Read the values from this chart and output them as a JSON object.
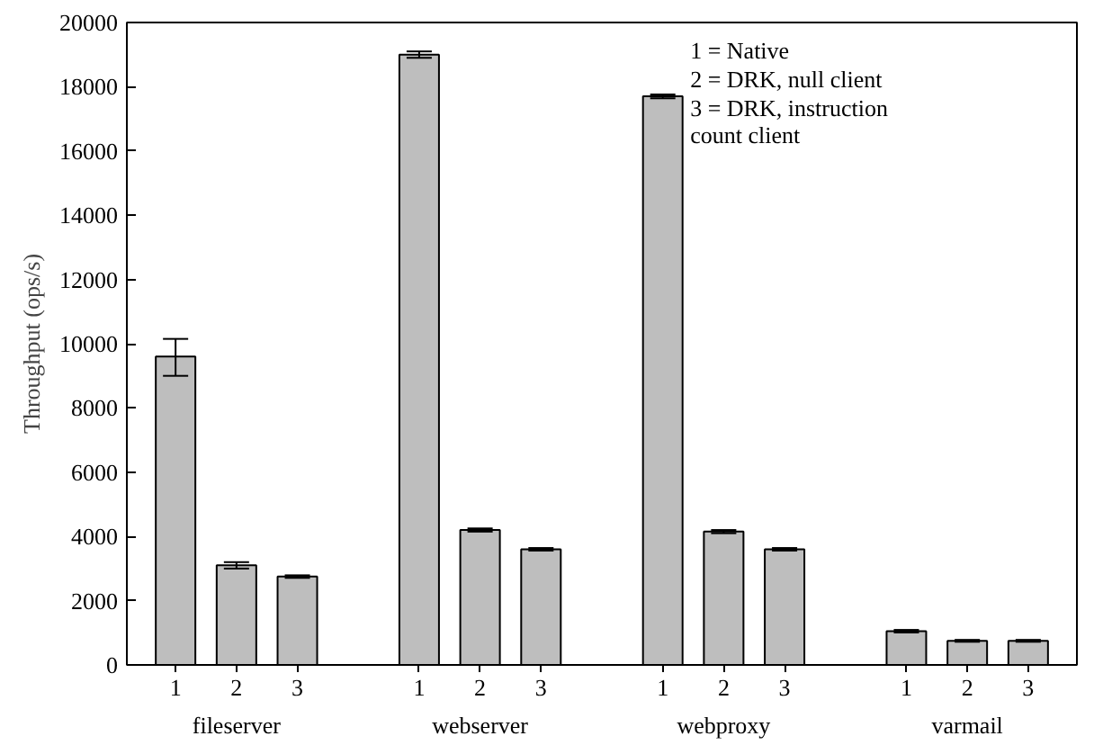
{
  "chart_data": {
    "type": "bar",
    "ylabel": "Throughput (ops/s)",
    "categories": [
      "1",
      "2",
      "3",
      "1",
      "2",
      "3",
      "1",
      "2",
      "3",
      "1",
      "2",
      "3"
    ],
    "values": [
      9600,
      3100,
      2750,
      19000,
      4200,
      3600,
      17700,
      4150,
      3600,
      1050,
      750,
      750
    ],
    "errors": [
      [
        9000,
        10150
      ],
      100,
      40,
      100,
      50,
      40,
      60,
      50,
      40,
      40,
      30,
      30
    ],
    "color": "#bebebe",
    "ylim": [
      0,
      20000
    ],
    "yticks": [
      0,
      2000,
      4000,
      6000,
      8000,
      10000,
      12000,
      14000,
      16000,
      18000,
      20000
    ],
    "grid": false,
    "annotations": [
      "fileserver",
      "webserver",
      "webproxy",
      "varmail",
      "1 = Native",
      "2 = DRK, null client",
      "3 = DRK, instruction\n       count client"
    ]
  }
}
